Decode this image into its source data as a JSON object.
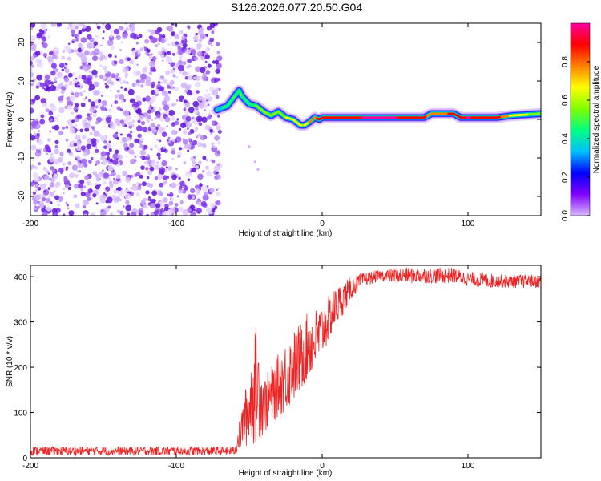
{
  "title": "S126.2026.077.20.50.G04",
  "chart_data": [
    {
      "type": "heatmap",
      "xlabel": "Height of straight line (km)",
      "ylabel": "Frequency (Hz)",
      "xlim": [
        -200,
        150
      ],
      "ylim": [
        -25,
        25
      ],
      "xticks": [
        -200,
        -100,
        0,
        100
      ],
      "yticks": [
        -20,
        -10,
        0,
        10,
        20
      ],
      "colorbar": {
        "label": "Normalized spectral amplitude",
        "range": [
          0.0,
          1.0
        ],
        "ticks": [
          0.0,
          0.2,
          0.4,
          0.6,
          0.8
        ],
        "colormap": [
          "#d8b8ff",
          "#8000ff",
          "#0000ff",
          "#00c0ff",
          "#00ff80",
          "#80ff00",
          "#ffff00",
          "#ff8000",
          "#ff0000",
          "#ff00a0"
        ]
      },
      "noise_region": {
        "x": [
          -200,
          -70
        ],
        "freq": [
          -25,
          25
        ]
      },
      "signal_ridge": {
        "x": [
          -72,
          -65,
          -60,
          -57,
          -55,
          -50,
          -45,
          -40,
          -35,
          -30,
          -25,
          -20,
          -15,
          -12,
          -8,
          -5,
          -2,
          0,
          10,
          30,
          50,
          70,
          75,
          80,
          90,
          95,
          100,
          120,
          130,
          150
        ],
        "freq": [
          2.5,
          3.5,
          6.0,
          7.5,
          6.0,
          4.0,
          3.5,
          2.0,
          1.0,
          2.0,
          0.5,
          0.0,
          -1.5,
          -1.5,
          -0.5,
          0.5,
          0.0,
          0.5,
          0.5,
          0.5,
          0.5,
          0.5,
          1.5,
          1.5,
          1.5,
          0.5,
          0.5,
          0.5,
          1.0,
          1.5
        ],
        "amplitude": [
          0.3,
          0.45,
          0.5,
          0.4,
          0.5,
          0.45,
          0.5,
          0.55,
          0.5,
          0.55,
          0.6,
          0.7,
          0.65,
          0.6,
          0.75,
          0.8,
          0.85,
          0.85,
          0.9,
          0.95,
          0.95,
          0.9,
          0.75,
          0.8,
          0.85,
          0.9,
          0.95,
          0.9,
          0.7,
          0.55
        ]
      },
      "stray_points": [
        {
          "x": -50,
          "freq": -7
        },
        {
          "x": -46,
          "freq": -11
        },
        {
          "x": -44,
          "freq": -13
        }
      ]
    },
    {
      "type": "line",
      "xlabel": "Height of straight line (km)",
      "ylabel": "SNR (10 * v/v)",
      "xlim": [
        -200,
        150
      ],
      "ylim": [
        0,
        425
      ],
      "xticks": [
        -200,
        -100,
        0,
        100
      ],
      "yticks": [
        0,
        100,
        200,
        300,
        400
      ],
      "series": [
        {
          "name": "SNR",
          "color": "#ee2222",
          "envelope_x": [
            -200,
            -60,
            -55,
            -50,
            -45,
            -40,
            -35,
            -30,
            -25,
            -20,
            -15,
            -10,
            -5,
            0,
            5,
            10,
            15,
            20,
            25,
            30,
            40,
            50,
            60,
            70,
            80,
            90,
            100,
            110,
            120,
            130,
            140,
            150
          ],
          "envelope_low": [
            5,
            5,
            20,
            25,
            30,
            50,
            70,
            90,
            100,
            120,
            140,
            170,
            190,
            220,
            260,
            290,
            320,
            350,
            370,
            380,
            390,
            385,
            385,
            385,
            385,
            385,
            380,
            375,
            375,
            375,
            375,
            375
          ],
          "envelope_high": [
            25,
            25,
            110,
            200,
            300,
            180,
            200,
            230,
            260,
            280,
            300,
            320,
            330,
            340,
            360,
            380,
            390,
            400,
            405,
            410,
            415,
            420,
            420,
            420,
            420,
            420,
            410,
            410,
            405,
            405,
            405,
            405
          ]
        }
      ]
    }
  ]
}
